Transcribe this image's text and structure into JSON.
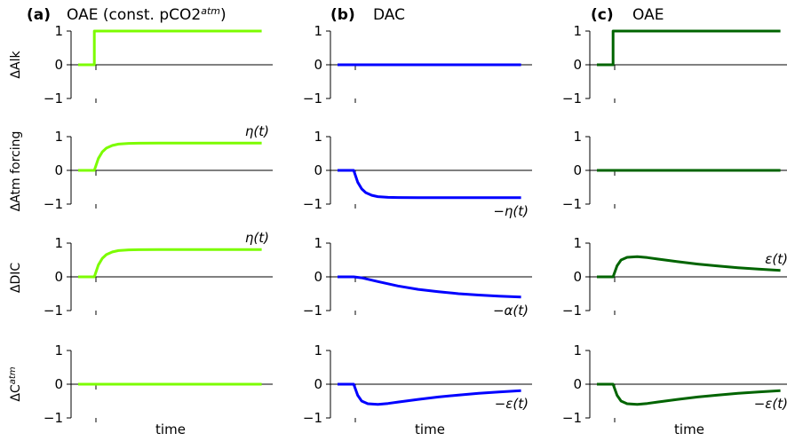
{
  "colors": {
    "a": "#7cfc00",
    "b": "#0000ff",
    "c": "#006400",
    "axis": "#000000"
  },
  "columns": [
    {
      "letter": "(a)",
      "title": "OAE (const. pCO2",
      "sup": "atm",
      "close": ")"
    },
    {
      "letter": "(b)",
      "title": "DAC",
      "sup": "",
      "close": ""
    },
    {
      "letter": "(c)",
      "title": "OAE",
      "sup": "",
      "close": ""
    }
  ],
  "row_labels": [
    {
      "text": "ΔAlk",
      "sup": ""
    },
    {
      "text": "ΔAtm forcing",
      "sup": ""
    },
    {
      "text": "ΔDIC",
      "sup": ""
    },
    {
      "text": "ΔC",
      "sup": "atm"
    }
  ],
  "xlabel": "time",
  "yticks": [
    "1",
    "0",
    "−1"
  ],
  "chart_data": [
    {
      "type": "line",
      "panel": "a-alk",
      "col": 0,
      "row": 0,
      "color": "a",
      "series": [
        {
          "x": [
            0,
            0.08,
            0.08,
            0.91
          ],
          "y": [
            0,
            0,
            1,
            1
          ]
        }
      ],
      "ylim": [
        -1,
        1
      ],
      "annotation": ""
    },
    {
      "type": "line",
      "panel": "b-alk",
      "col": 1,
      "row": 0,
      "color": "b",
      "series": [
        {
          "x": [
            0,
            0.91
          ],
          "y": [
            0,
            0
          ]
        }
      ],
      "ylim": [
        -1,
        1
      ],
      "annotation": ""
    },
    {
      "type": "line",
      "panel": "c-alk",
      "col": 2,
      "row": 0,
      "color": "c",
      "series": [
        {
          "x": [
            0,
            0.08,
            0.08,
            0.91
          ],
          "y": [
            0,
            0,
            1,
            1
          ]
        }
      ],
      "ylim": [
        -1,
        1
      ],
      "annotation": ""
    },
    {
      "type": "line",
      "panel": "a-atm",
      "col": 0,
      "row": 1,
      "color": "a",
      "series": [
        {
          "x": [
            0,
            0.08,
            0.1,
            0.12,
            0.14,
            0.17,
            0.2,
            0.25,
            0.3,
            0.4,
            0.5,
            0.7,
            0.91
          ],
          "y": [
            0,
            0,
            0.35,
            0.55,
            0.66,
            0.74,
            0.78,
            0.8,
            0.805,
            0.81,
            0.81,
            0.81,
            0.81
          ]
        }
      ],
      "ylim": [
        -1,
        1
      ],
      "annotation": "η(t)"
    },
    {
      "type": "line",
      "panel": "b-atm",
      "col": 1,
      "row": 1,
      "color": "b",
      "series": [
        {
          "x": [
            0,
            0.08,
            0.1,
            0.12,
            0.14,
            0.17,
            0.2,
            0.25,
            0.3,
            0.4,
            0.5,
            0.7,
            0.91
          ],
          "y": [
            0,
            0,
            -0.35,
            -0.55,
            -0.66,
            -0.74,
            -0.78,
            -0.8,
            -0.805,
            -0.81,
            -0.81,
            -0.81,
            -0.81
          ]
        }
      ],
      "ylim": [
        -1,
        1
      ],
      "annotation": "−η(t)"
    },
    {
      "type": "line",
      "panel": "c-atm",
      "col": 2,
      "row": 1,
      "color": "c",
      "series": [
        {
          "x": [
            0,
            0.91
          ],
          "y": [
            0,
            0
          ]
        }
      ],
      "ylim": [
        -1,
        1
      ],
      "annotation": ""
    },
    {
      "type": "line",
      "panel": "a-dic",
      "col": 0,
      "row": 2,
      "color": "a",
      "series": [
        {
          "x": [
            0,
            0.08,
            0.1,
            0.12,
            0.14,
            0.17,
            0.2,
            0.25,
            0.3,
            0.4,
            0.5,
            0.7,
            0.91
          ],
          "y": [
            0,
            0,
            0.35,
            0.55,
            0.66,
            0.74,
            0.78,
            0.8,
            0.805,
            0.81,
            0.81,
            0.81,
            0.81
          ]
        }
      ],
      "ylim": [
        -1,
        1
      ],
      "annotation": "η(t)"
    },
    {
      "type": "line",
      "panel": "b-dic",
      "col": 1,
      "row": 2,
      "color": "b",
      "series": [
        {
          "x": [
            0,
            0.08,
            0.12,
            0.2,
            0.3,
            0.4,
            0.5,
            0.6,
            0.7,
            0.8,
            0.91
          ],
          "y": [
            0,
            0,
            -0.03,
            -0.14,
            -0.27,
            -0.37,
            -0.44,
            -0.5,
            -0.54,
            -0.57,
            -0.6
          ]
        }
      ],
      "ylim": [
        -1,
        1
      ],
      "annotation": "−α(t)"
    },
    {
      "type": "line",
      "panel": "c-dic",
      "col": 2,
      "row": 2,
      "color": "c",
      "series": [
        {
          "x": [
            0,
            0.08,
            0.1,
            0.12,
            0.15,
            0.2,
            0.25,
            0.3,
            0.4,
            0.5,
            0.6,
            0.7,
            0.8,
            0.91
          ],
          "y": [
            0,
            0,
            0.33,
            0.5,
            0.58,
            0.6,
            0.57,
            0.53,
            0.45,
            0.38,
            0.32,
            0.27,
            0.23,
            0.19
          ]
        }
      ],
      "ylim": [
        -1,
        1
      ],
      "annotation": "ε(t)"
    },
    {
      "type": "line",
      "panel": "a-catm",
      "col": 0,
      "row": 3,
      "color": "a",
      "series": [
        {
          "x": [
            0,
            0.91
          ],
          "y": [
            0,
            0
          ]
        }
      ],
      "ylim": [
        -1,
        1
      ],
      "annotation": ""
    },
    {
      "type": "line",
      "panel": "b-catm",
      "col": 1,
      "row": 3,
      "color": "b",
      "series": [
        {
          "x": [
            0,
            0.08,
            0.1,
            0.12,
            0.15,
            0.2,
            0.25,
            0.3,
            0.4,
            0.5,
            0.6,
            0.7,
            0.8,
            0.91
          ],
          "y": [
            0,
            0,
            -0.33,
            -0.5,
            -0.58,
            -0.6,
            -0.57,
            -0.53,
            -0.45,
            -0.38,
            -0.32,
            -0.27,
            -0.23,
            -0.19
          ]
        }
      ],
      "ylim": [
        -1,
        1
      ],
      "annotation": "−ε(t)"
    },
    {
      "type": "line",
      "panel": "c-catm",
      "col": 2,
      "row": 3,
      "color": "c",
      "series": [
        {
          "x": [
            0,
            0.08,
            0.1,
            0.12,
            0.15,
            0.2,
            0.25,
            0.3,
            0.4,
            0.5,
            0.6,
            0.7,
            0.8,
            0.91
          ],
          "y": [
            0,
            0,
            -0.33,
            -0.5,
            -0.58,
            -0.6,
            -0.57,
            -0.53,
            -0.45,
            -0.38,
            -0.32,
            -0.27,
            -0.23,
            -0.19
          ]
        }
      ],
      "ylim": [
        -1,
        1
      ],
      "annotation": "−ε(t)"
    }
  ]
}
